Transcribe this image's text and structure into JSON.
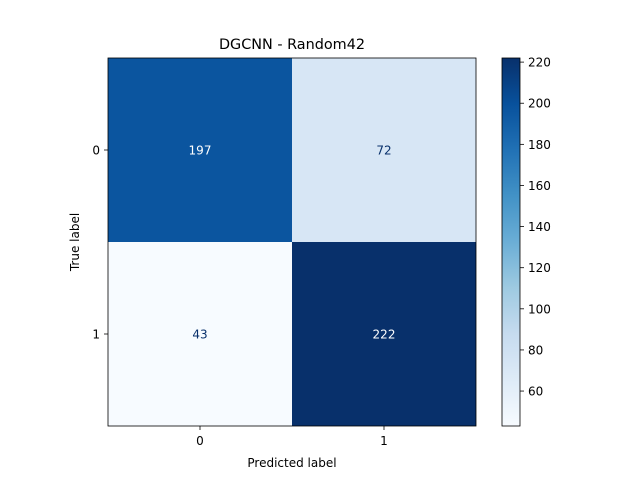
{
  "chart_data": {
    "type": "heatmap",
    "title": "DGCNN - Random42",
    "xlabel": "Predicted label",
    "ylabel": "True label",
    "x_categories": [
      "0",
      "1"
    ],
    "y_categories": [
      "0",
      "1"
    ],
    "matrix": [
      [
        197,
        72
      ],
      [
        43,
        222
      ]
    ],
    "colormap": "Blues",
    "colorbar": {
      "range": [
        43,
        222
      ],
      "ticks": [
        60,
        80,
        100,
        120,
        140,
        160,
        180,
        200,
        220
      ],
      "tick_labels": [
        "60",
        "80",
        "100",
        "120",
        "140",
        "160",
        "180",
        "200",
        "220"
      ]
    },
    "text_color_dark_cells": "#ffffff",
    "text_color_light_cells": "#08306b"
  }
}
